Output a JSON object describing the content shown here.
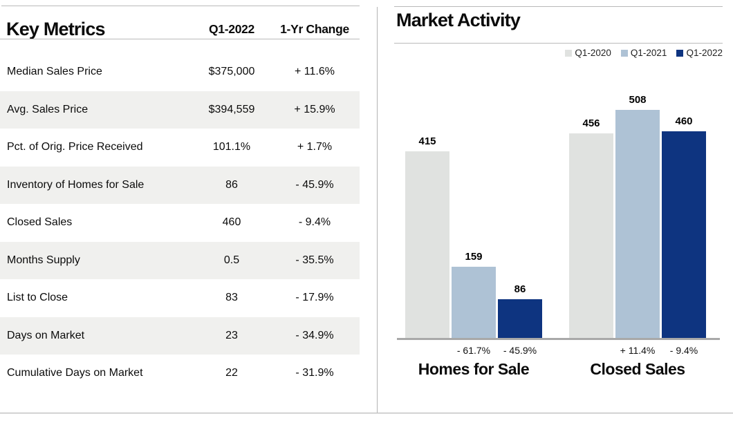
{
  "key_metrics": {
    "title": "Key Metrics",
    "columns": {
      "period": "Q1-2022",
      "change": "1-Yr Change"
    },
    "rows": [
      {
        "label": "Median Sales Price",
        "value": "$375,000",
        "change": "+ 11.6%"
      },
      {
        "label": "Avg. Sales Price",
        "value": "$394,559",
        "change": "+ 15.9%"
      },
      {
        "label": "Pct. of Orig. Price Received",
        "value": "101.1%",
        "change": "+ 1.7%"
      },
      {
        "label": "Inventory of Homes for Sale",
        "value": "86",
        "change": "- 45.9%"
      },
      {
        "label": "Closed Sales",
        "value": "460",
        "change": "- 9.4%"
      },
      {
        "label": "Months Supply",
        "value": "0.5",
        "change": "- 35.5%"
      },
      {
        "label": "List to Close",
        "value": "83",
        "change": "- 17.9%"
      },
      {
        "label": "Days on Market",
        "value": "23",
        "change": "- 34.9%"
      },
      {
        "label": "Cumulative Days on Market",
        "value": "22",
        "change": "- 31.9%"
      }
    ]
  },
  "market_activity": {
    "title": "Market Activity"
  },
  "chart_data": {
    "type": "bar",
    "title": "Market Activity",
    "categories": [
      "Homes for Sale",
      "Closed Sales"
    ],
    "series": [
      {
        "name": "Q1-2020",
        "values": [
          415,
          456
        ],
        "color": "#e0e2e0",
        "pct_changes": [
          "",
          ""
        ]
      },
      {
        "name": "Q1-2021",
        "values": [
          159,
          508
        ],
        "color": "#aec2d5",
        "pct_changes": [
          "- 61.7%",
          "+ 11.4%"
        ]
      },
      {
        "name": "Q1-2022",
        "values": [
          86,
          460
        ],
        "color": "#0e3480",
        "pct_changes": [
          "- 45.9%",
          "- 9.4%"
        ]
      }
    ],
    "ylim": [
      0,
      560
    ],
    "grid": false,
    "legend_position": "top-right",
    "xlabel": "",
    "ylabel": ""
  },
  "colors": {
    "q1_2020": "#e0e2e0",
    "q1_2021": "#aec2d5",
    "q1_2022": "#0e3480",
    "row_stripe": "#f0f0ee",
    "axis": "#a8a8a8"
  }
}
